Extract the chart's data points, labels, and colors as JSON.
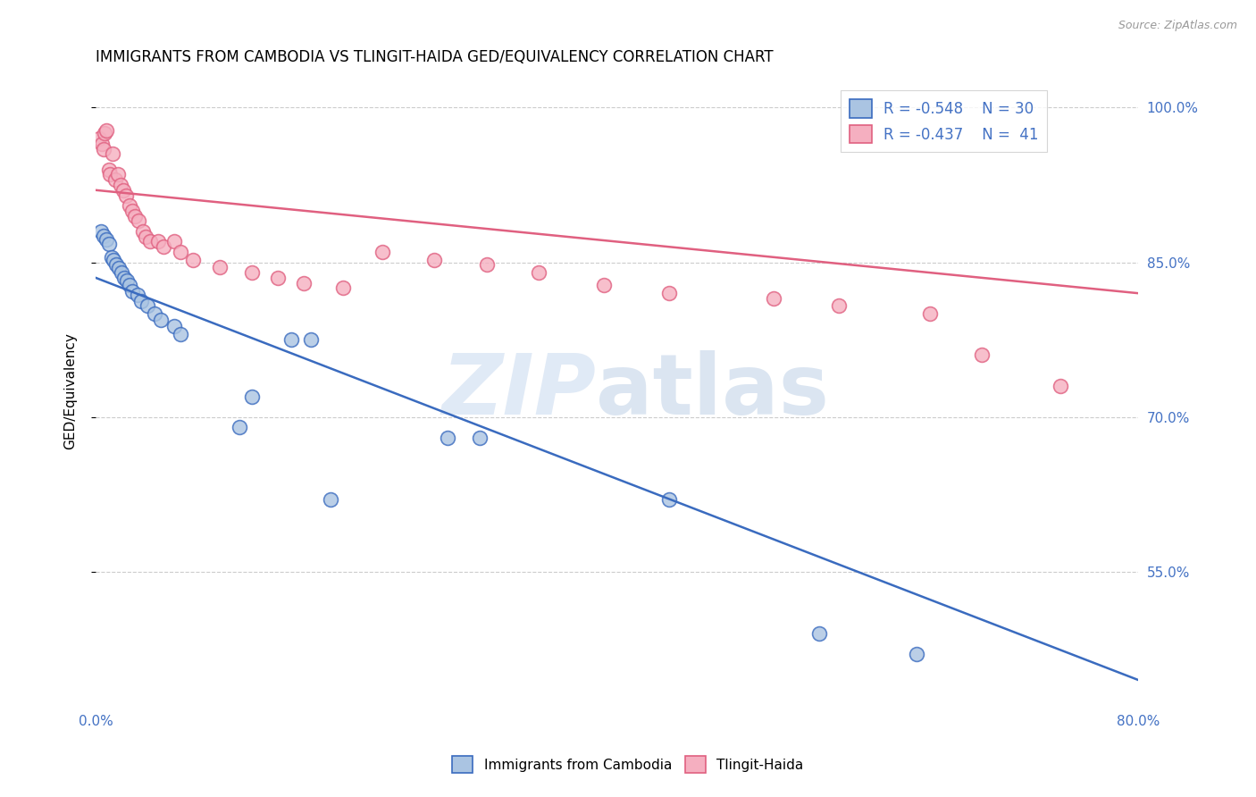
{
  "title": "IMMIGRANTS FROM CAMBODIA VS TLINGIT-HAIDA GED/EQUIVALENCY CORRELATION CHART",
  "source": "Source: ZipAtlas.com",
  "ylabel": "GED/Equivalency",
  "yticks": [
    "100.0%",
    "85.0%",
    "70.0%",
    "55.0%"
  ],
  "ytick_vals": [
    1.0,
    0.85,
    0.7,
    0.55
  ],
  "xlim": [
    0.0,
    0.8
  ],
  "ylim": [
    0.42,
    1.03
  ],
  "legend_r1": "R = -0.548",
  "legend_n1": "N = 30",
  "legend_r2": "R = -0.437",
  "legend_n2": "N = 41",
  "color_blue": "#aac4e2",
  "color_pink": "#f5afc0",
  "line_blue": "#3a6bbf",
  "line_pink": "#e06080",
  "cambodia_x": [
    0.004,
    0.006,
    0.008,
    0.01,
    0.012,
    0.014,
    0.016,
    0.018,
    0.02,
    0.022,
    0.024,
    0.026,
    0.028,
    0.032,
    0.035,
    0.04,
    0.045,
    0.05,
    0.06,
    0.065,
    0.11,
    0.12,
    0.15,
    0.165,
    0.18,
    0.27,
    0.295,
    0.44,
    0.555,
    0.63
  ],
  "cambodia_y": [
    0.88,
    0.876,
    0.872,
    0.868,
    0.855,
    0.852,
    0.848,
    0.844,
    0.84,
    0.835,
    0.832,
    0.828,
    0.822,
    0.818,
    0.812,
    0.808,
    0.8,
    0.794,
    0.788,
    0.78,
    0.69,
    0.72,
    0.775,
    0.775,
    0.62,
    0.68,
    0.68,
    0.62,
    0.49,
    0.47
  ],
  "tlingit_x": [
    0.003,
    0.005,
    0.006,
    0.007,
    0.008,
    0.01,
    0.011,
    0.013,
    0.015,
    0.017,
    0.019,
    0.021,
    0.023,
    0.026,
    0.028,
    0.03,
    0.033,
    0.036,
    0.038,
    0.042,
    0.048,
    0.052,
    0.06,
    0.065,
    0.075,
    0.095,
    0.12,
    0.14,
    0.16,
    0.19,
    0.22,
    0.26,
    0.3,
    0.34,
    0.39,
    0.44,
    0.52,
    0.57,
    0.64,
    0.68,
    0.74
  ],
  "tlingit_y": [
    0.97,
    0.965,
    0.96,
    0.975,
    0.978,
    0.94,
    0.935,
    0.955,
    0.93,
    0.935,
    0.925,
    0.92,
    0.915,
    0.905,
    0.9,
    0.895,
    0.89,
    0.88,
    0.875,
    0.87,
    0.87,
    0.865,
    0.87,
    0.86,
    0.852,
    0.845,
    0.84,
    0.835,
    0.83,
    0.825,
    0.86,
    0.852,
    0.848,
    0.84,
    0.828,
    0.82,
    0.815,
    0.808,
    0.8,
    0.76,
    0.73
  ],
  "blue_line_x0": 0.0,
  "blue_line_y0": 0.835,
  "blue_line_x1": 0.8,
  "blue_line_y1": 0.445,
  "pink_line_x0": 0.0,
  "pink_line_y0": 0.92,
  "pink_line_x1": 0.8,
  "pink_line_y1": 0.82
}
